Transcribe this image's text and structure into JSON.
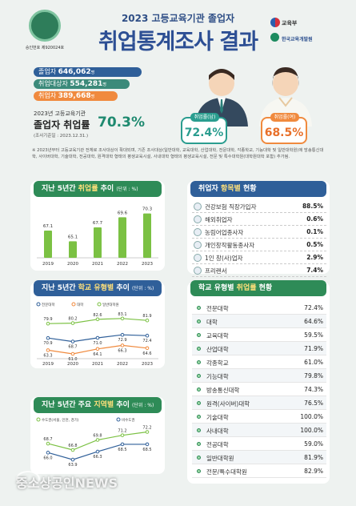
{
  "header": {
    "subtitle": "2023 고등교육기관 졸업자",
    "title": "취업통계조사 결과",
    "seal_text": "승인번호 제920024호",
    "org1": "교육부",
    "org2": "한국교육개발원"
  },
  "stats": [
    {
      "label": "졸업자",
      "value": "646,062",
      "unit": "명",
      "color": "#2f5f99"
    },
    {
      "label": "취업대상자",
      "value": "554,281",
      "unit": "명",
      "color": "#3b8a7a"
    },
    {
      "label": "취업자",
      "value": "389,668",
      "unit": "명",
      "color": "#f08a3e"
    }
  ],
  "rate": {
    "label": "2023년 고등교육기관",
    "title": "졸업자 취업률",
    "value": "70.3%",
    "date": "(조사기준일 : 2023.12.31.)"
  },
  "gender": [
    {
      "tag": "취업률(남)",
      "value": "72.4%",
      "tag_color": "#2a9d8f",
      "value_color": "#2a9d8f"
    },
    {
      "tag": "취업률(여)",
      "value": "68.5%",
      "tag_color": "#f08a3e",
      "value_color": "#e8702a"
    }
  ],
  "note": "※ 2023년부터 고등교육기관 전체로 조사대상이 확대되며, 기존 조사대상(일반대학, 교육대학, 산업대학, 전문대학, 각종학교, 기능대학 및 일반대학원)에 방송통신대학, 사이버대학, 기술대학, 전공대학, 원격대학 형태의 평생교육시설, 사내대학 형태의 평생교육시설, 전문 및 특수대학원(대학원대학 포함) 추가됨.",
  "panel1": {
    "title_a": "지난 5년간 ",
    "title_hl": "취업률",
    "title_b": " 추이",
    "unit": "(단위 : %)"
  },
  "panel2": {
    "title_a": "지난 5년간 ",
    "title_hl": "학교 유형별",
    "title_b": " 추이",
    "unit": "(단위 : %)"
  },
  "panel3": {
    "title_a": "지난 5년간 주요 ",
    "title_hl": "지역별",
    "title_b": " 추이",
    "unit": "(단위 : %)"
  },
  "panel4": {
    "title_a": "취업자 ",
    "title_hl": "항목별",
    "title_b": " 현황"
  },
  "panel5": {
    "title_a": "학교 유형별 ",
    "title_hl": "취업률",
    "title_b": " 현황"
  },
  "chart_data": [
    {
      "type": "bar",
      "categories": [
        "2019",
        "2020",
        "2021",
        "2022",
        "2023"
      ],
      "values": [
        67.1,
        65.1,
        67.7,
        69.6,
        70.3
      ],
      "title": "지난 5년간 취업률 추이",
      "ylabel": "(단위 : %)"
    },
    {
      "type": "line",
      "categories": [
        "2019",
        "2020",
        "2021",
        "2022",
        "2023"
      ],
      "series": [
        {
          "name": "전문대학",
          "values": [
            70.9,
            68.7,
            71.0,
            72.9,
            72.4
          ],
          "color": "#2f5f99"
        },
        {
          "name": "대학",
          "values": [
            63.3,
            61.0,
            64.1,
            66.3,
            64.6
          ],
          "color": "#f08a3e"
        },
        {
          "name": "일반대학원",
          "values": [
            79.9,
            80.2,
            82.6,
            83.1,
            81.9
          ],
          "color": "#7bc143"
        }
      ],
      "title": "지난 5년간 학교 유형별 추이",
      "ylabel": "(단위 : %)"
    },
    {
      "type": "line",
      "categories": [
        "2019",
        "2020",
        "2021",
        "2022",
        "2023"
      ],
      "series": [
        {
          "name": "수도권(서울, 인천, 경기)",
          "values": [
            68.7,
            66.8,
            69.8,
            71.2,
            72.2
          ],
          "color": "#7bc143"
        },
        {
          "name": "비수도권",
          "values": [
            66.0,
            63.9,
            66.3,
            68.5,
            68.5
          ],
          "color": "#2f5f99"
        }
      ],
      "title": "지난 5년간 주요 지역별 추이",
      "ylabel": "(단위 : %)"
    }
  ],
  "items": [
    {
      "label": "건강보험 직장가입자",
      "value": "88.5%"
    },
    {
      "label": "해외취업자",
      "value": "0.6%"
    },
    {
      "label": "농림어업종사자",
      "value": "0.1%"
    },
    {
      "label": "개인창작활동종사자",
      "value": "0.5%"
    },
    {
      "label": "1인 창(사)업자",
      "value": "2.9%"
    },
    {
      "label": "프리랜서",
      "value": "7.4%"
    }
  ],
  "school_types": [
    {
      "label": "전문대학",
      "value": "72.4%"
    },
    {
      "label": "대학",
      "value": "64.6%"
    },
    {
      "label": "교육대학",
      "value": "59.5%"
    },
    {
      "label": "산업대학",
      "value": "71.9%"
    },
    {
      "label": "각종학교",
      "value": "61.0%"
    },
    {
      "label": "기능대학",
      "value": "79.8%"
    },
    {
      "label": "방송통신대학",
      "value": "74.3%"
    },
    {
      "label": "원격(사이버)대학",
      "value": "76.5%"
    },
    {
      "label": "기술대학",
      "value": "100.0%"
    },
    {
      "label": "사내대학",
      "value": "100.0%"
    },
    {
      "label": "전공대학",
      "value": "59.0%"
    },
    {
      "label": "일반대학원",
      "value": "81.9%"
    },
    {
      "label": "전문/특수대학원",
      "value": "82.9%"
    }
  ],
  "watermark": "중소상공인NEWS"
}
